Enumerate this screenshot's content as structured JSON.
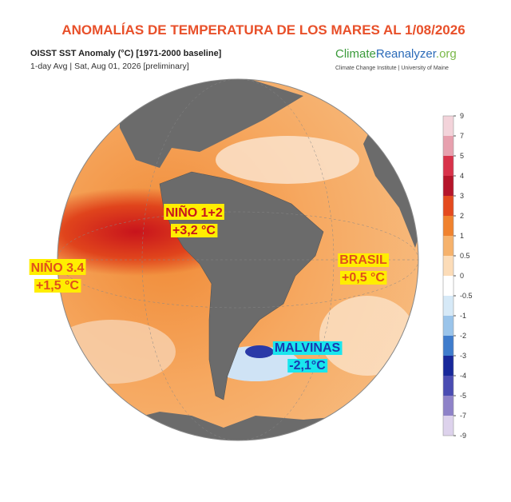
{
  "header": {
    "title": "ANOMALÍAS DE TEMPERATURA DE LOS MARES AL 1/08/2026",
    "subtitle": "OISST SST Anomaly (°C) [1971-2000 baseline]",
    "subtitle2": "1-day Avg | Sat, Aug 01, 2026 [preliminary]",
    "logo": {
      "part1": "Climate",
      "part2": "Reanalyzer",
      "part3": ".org"
    },
    "logo_caption": "Climate Change Institute | University of Maine"
  },
  "annotations": [
    {
      "line1": "NIÑO 1+2",
      "line2": "+3,2 °C"
    },
    {
      "line1": "NIÑO 3.4",
      "line2": "+1,5 °C"
    },
    {
      "line1": "BRASIL",
      "line2": "+0,5 °C"
    },
    {
      "line1": "MALVINAS",
      "line2": "-2,1°C"
    }
  ],
  "colorbar": {
    "ticks": [
      9,
      7,
      5,
      4,
      3,
      2,
      1,
      0.5,
      0,
      -0.5,
      -1,
      -2,
      -3,
      -4,
      -5,
      -7,
      -9
    ],
    "colors": [
      "#f3d3da",
      "#e7a0ae",
      "#d8324a",
      "#b5152a",
      "#e44a1e",
      "#f0822e",
      "#f6b26c",
      "#fcdcb8",
      "#ffffff",
      "#d6e9f7",
      "#9ac4ea",
      "#3f7ccc",
      "#18289a",
      "#4a4cb2",
      "#8e82c8",
      "#ddd2ec"
    ]
  }
}
